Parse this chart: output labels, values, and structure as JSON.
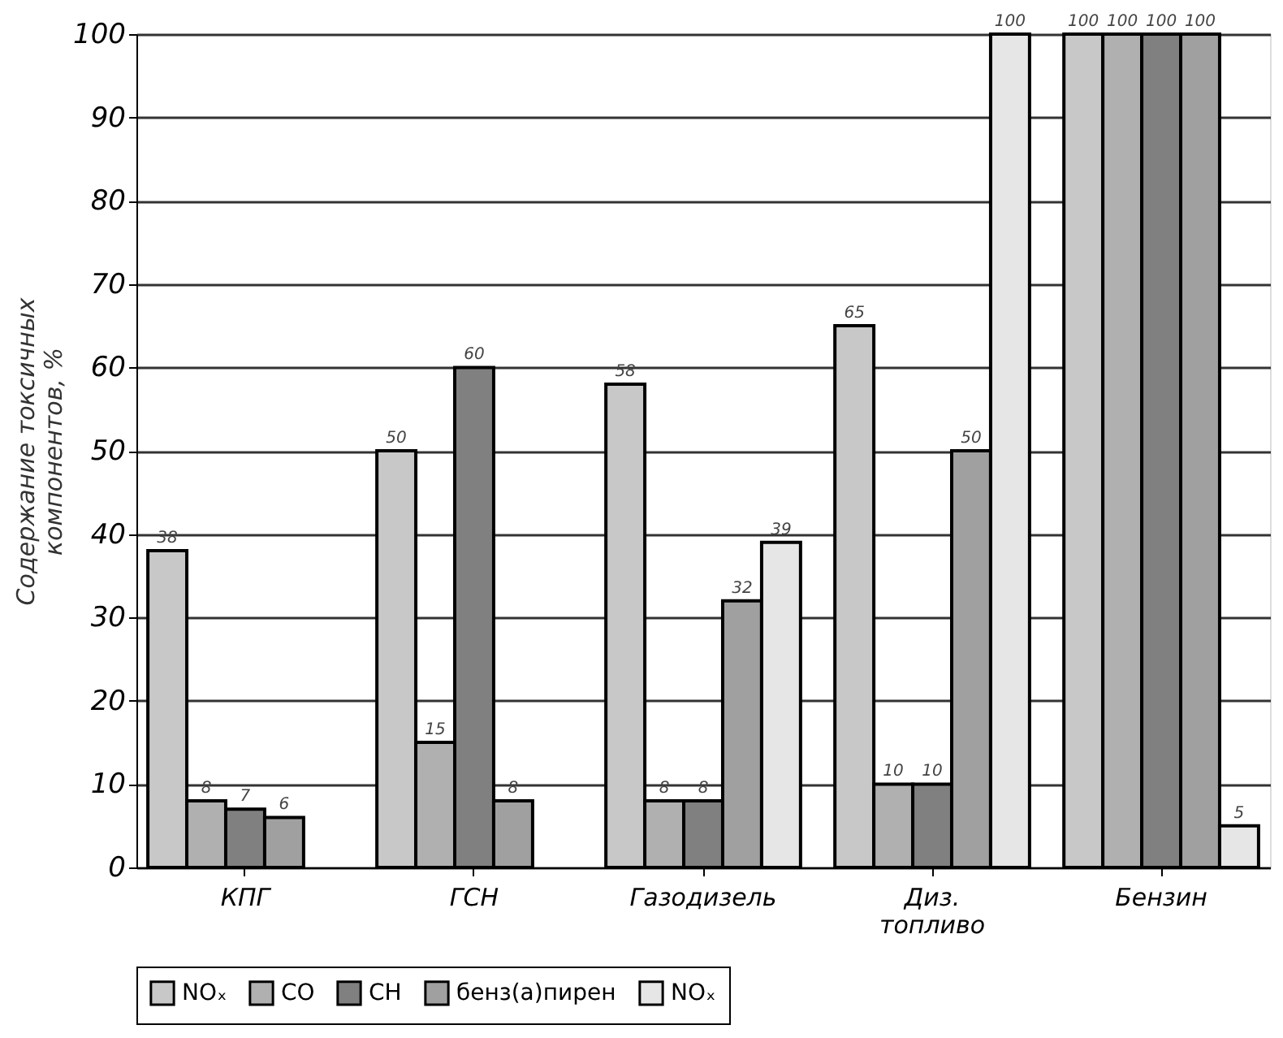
{
  "chart_data": {
    "type": "bar",
    "ylabel": "Содержание токсичных компонентов, %",
    "categories": [
      "КПГ",
      "ГСН",
      "Газодизель",
      "Диз. топливо",
      "Бензин"
    ],
    "series": [
      {
        "name": "NOₓ",
        "color": "#c8c8c8",
        "values": [
          38,
          50,
          58,
          65,
          100
        ]
      },
      {
        "name": "CO",
        "color": "#b0b0b0",
        "values": [
          8,
          15,
          8,
          10,
          100
        ]
      },
      {
        "name": "CH",
        "color": "#808080",
        "values": [
          7,
          60,
          8,
          10,
          100
        ]
      },
      {
        "name": "бенз(а)пирен",
        "color": "#a0a0a0",
        "values": [
          6,
          8,
          32,
          50,
          100
        ]
      },
      {
        "name": "NOₓ",
        "color": "#e6e6e6",
        "values": [
          null,
          null,
          39,
          100,
          5
        ]
      }
    ],
    "ylim": [
      0,
      100
    ],
    "yticks": [
      0,
      10,
      20,
      30,
      40,
      50,
      60,
      70,
      80,
      90,
      100
    ],
    "grid": "y",
    "legend": "bottom",
    "data_labels": true
  }
}
